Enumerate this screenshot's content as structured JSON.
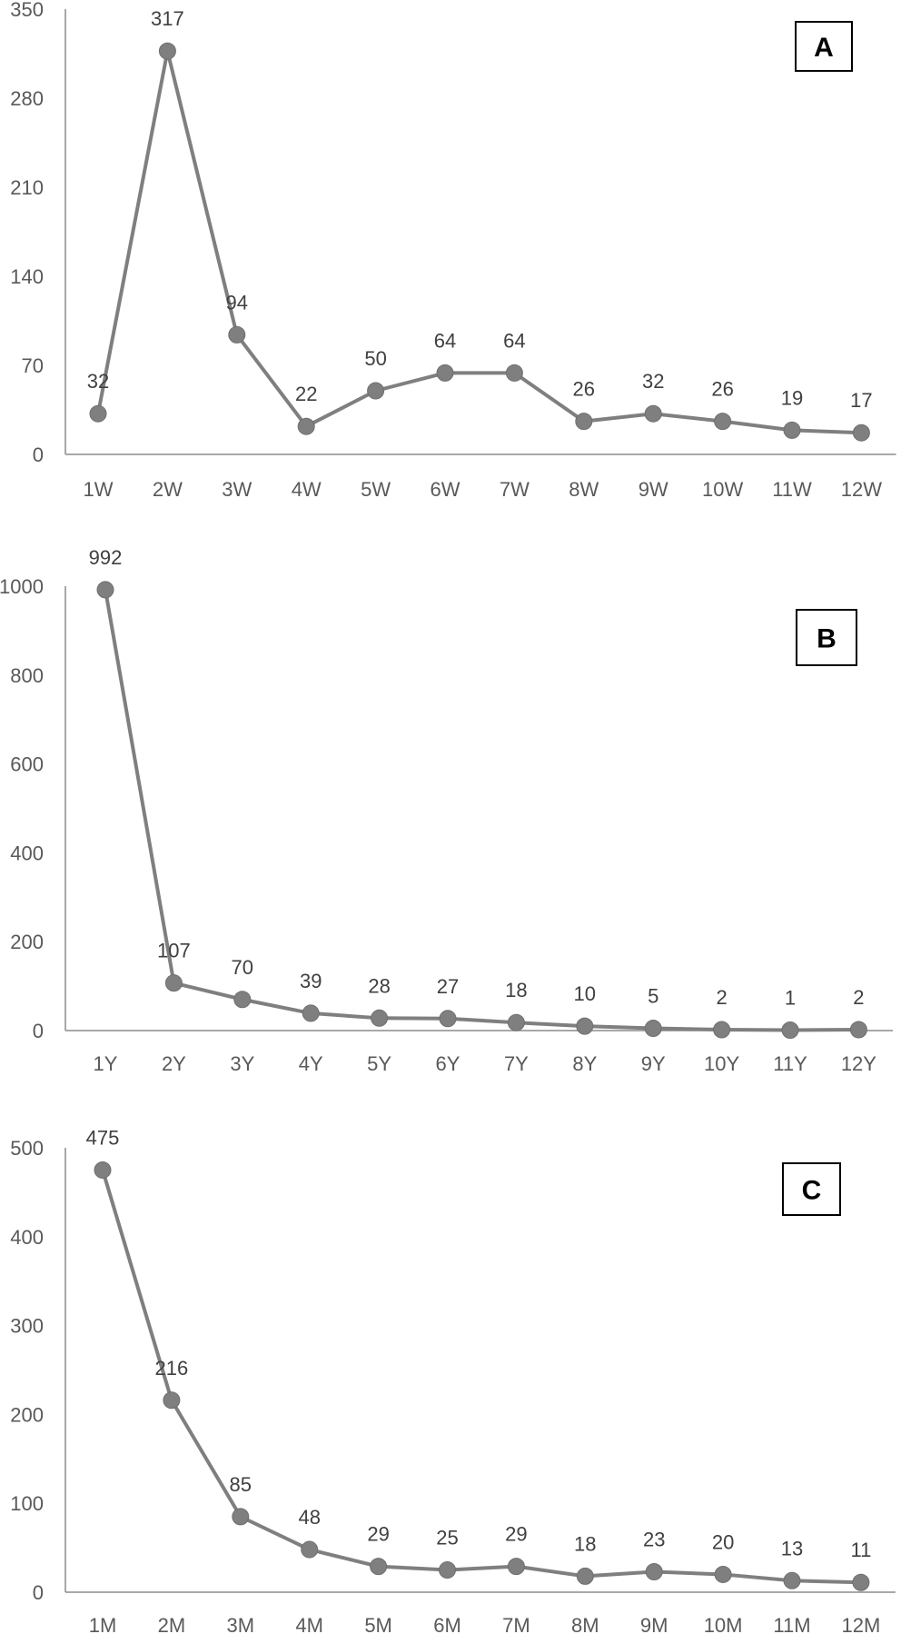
{
  "chart_data": [
    {
      "type": "line",
      "panel_label": "A",
      "categories": [
        "1W",
        "2W",
        "3W",
        "4W",
        "5W",
        "6W",
        "7W",
        "8W",
        "9W",
        "10W",
        "11W",
        "12W"
      ],
      "values": [
        32,
        317,
        94,
        22,
        50,
        64,
        64,
        26,
        32,
        26,
        19,
        17
      ],
      "yticks": [
        0,
        70,
        140,
        210,
        280,
        350
      ],
      "ylim": [
        0,
        350
      ],
      "grid": false,
      "legend": "none"
    },
    {
      "type": "line",
      "panel_label": "B",
      "categories": [
        "1Y",
        "2Y",
        "3Y",
        "4Y",
        "5Y",
        "6Y",
        "7Y",
        "8Y",
        "9Y",
        "10Y",
        "11Y",
        "12Y"
      ],
      "values": [
        992,
        107,
        70,
        39,
        28,
        27,
        18,
        10,
        5,
        2,
        1,
        2
      ],
      "yticks": [
        0,
        200,
        400,
        600,
        800,
        1000
      ],
      "ylim": [
        0,
        1000
      ],
      "grid": false,
      "legend": "none"
    },
    {
      "type": "line",
      "panel_label": "C",
      "categories": [
        "1M",
        "2M",
        "3M",
        "4M",
        "5M",
        "6M",
        "7M",
        "8M",
        "9M",
        "10M",
        "11M",
        "12M"
      ],
      "values": [
        475,
        216,
        85,
        48,
        29,
        25,
        29,
        18,
        23,
        20,
        13,
        11
      ],
      "yticks": [
        0,
        100,
        200,
        300,
        400,
        500
      ],
      "ylim": [
        0,
        500
      ],
      "grid": false,
      "legend": "none"
    }
  ]
}
